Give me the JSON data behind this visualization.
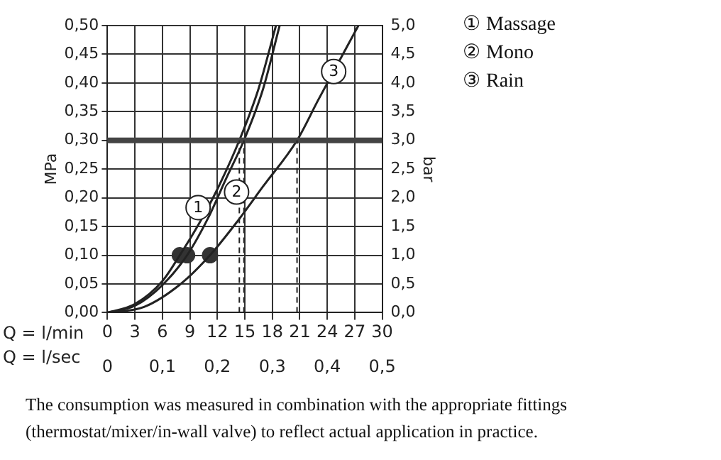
{
  "chart_data": {
    "type": "line",
    "xlabel": "Q = l/min",
    "x2label": "Q = l/sec",
    "ylabel": "MPa",
    "y2label": "bar",
    "xlim": [
      0,
      30
    ],
    "xticks": [
      0,
      3,
      6,
      9,
      12,
      15,
      18,
      21,
      24,
      27,
      30
    ],
    "x2lim": [
      0,
      0.5
    ],
    "x2ticks": [
      0,
      {
        "value": 0.1,
        "label": "0,1"
      },
      {
        "value": 0.2,
        "label": "0,2"
      },
      {
        "value": 0.3,
        "label": "0,3"
      },
      {
        "value": 0.4,
        "label": "0,4"
      },
      {
        "value": 0.5,
        "label": "0,5"
      }
    ],
    "ylim": [
      0,
      0.5
    ],
    "yticks": [
      {
        "value": 0,
        "label": "0,00"
      },
      {
        "value": 0.05,
        "label": "0,05"
      },
      {
        "value": 0.1,
        "label": "0,10"
      },
      {
        "value": 0.15,
        "label": "0,15"
      },
      {
        "value": 0.2,
        "label": "0,20"
      },
      {
        "value": 0.25,
        "label": "0,25"
      },
      {
        "value": 0.3,
        "label": "0,30"
      },
      {
        "value": 0.35,
        "label": "0,35"
      },
      {
        "value": 0.4,
        "label": "0,40"
      },
      {
        "value": 0.45,
        "label": "0,45"
      },
      {
        "value": 0.5,
        "label": "0,50"
      }
    ],
    "y2lim": [
      0,
      5
    ],
    "y2ticks": [
      {
        "value": 0,
        "label": "0,0"
      },
      {
        "value": 0.5,
        "label": "0,5"
      },
      {
        "value": 1,
        "label": "1,0"
      },
      {
        "value": 1.5,
        "label": "1,5"
      },
      {
        "value": 2,
        "label": "2,0"
      },
      {
        "value": 2.5,
        "label": "2,5"
      },
      {
        "value": 3,
        "label": "3,0"
      },
      {
        "value": 3.5,
        "label": "3,5"
      },
      {
        "value": 4,
        "label": "4,0"
      },
      {
        "value": 4.5,
        "label": "4,5"
      },
      {
        "value": 5,
        "label": "5,0"
      }
    ],
    "grid": true,
    "legend": "top right",
    "marker": "none",
    "series": [
      {
        "name": "① Massage",
        "color": "#222222",
        "x": [
          0,
          3,
          6,
          7.9,
          10,
          12,
          14.4,
          16.5,
          18.4
        ],
        "values": [
          0,
          0.015,
          0.055,
          0.1,
          0.155,
          0.215,
          0.3,
          0.39,
          0.5
        ]
      },
      {
        "name": "② Mono",
        "color": "#222222",
        "x": [
          0,
          3,
          6,
          8.7,
          11,
          13,
          14.9,
          17,
          18.8
        ],
        "values": [
          0,
          0.012,
          0.048,
          0.1,
          0.165,
          0.235,
          0.3,
          0.39,
          0.5
        ]
      },
      {
        "name": "③ Rain",
        "color": "#222222",
        "x": [
          0,
          4,
          8,
          11.2,
          14,
          17,
          20.7,
          23,
          27.4
        ],
        "values": [
          0,
          0.01,
          0.05,
          0.1,
          0.155,
          0.22,
          0.3,
          0.37,
          0.5
        ]
      },
      {
        "type": "scatter",
        "marker": "circle",
        "color": "#333333",
        "x": [
          7.9,
          8.7,
          11.2
        ],
        "values": [
          0.1,
          0.1,
          0.1
        ]
      }
    ],
    "ref_lines": [
      {
        "axis": "y",
        "value": 0.3,
        "color": "#444444",
        "line_style": "solid"
      },
      {
        "axis": "x",
        "value": 14.4,
        "color": "#222222",
        "line_style": "dashed"
      },
      {
        "axis": "x",
        "value": 14.9,
        "color": "#222222",
        "line_style": "dashed"
      },
      {
        "axis": "x",
        "value": 20.7,
        "color": "#222222",
        "line_style": "dashed"
      }
    ],
    "annotations": [
      {
        "text": "1",
        "x": 9.9,
        "y": 0.183
      },
      {
        "text": "2",
        "x": 14.1,
        "y": 0.21
      },
      {
        "text": "3",
        "x": 24.7,
        "y": 0.42
      },
      "The consumption was measured in combination with the appropriate fittings (thermostat/mixer/in-wall valve) to reflect actual application in practice."
    ]
  }
}
